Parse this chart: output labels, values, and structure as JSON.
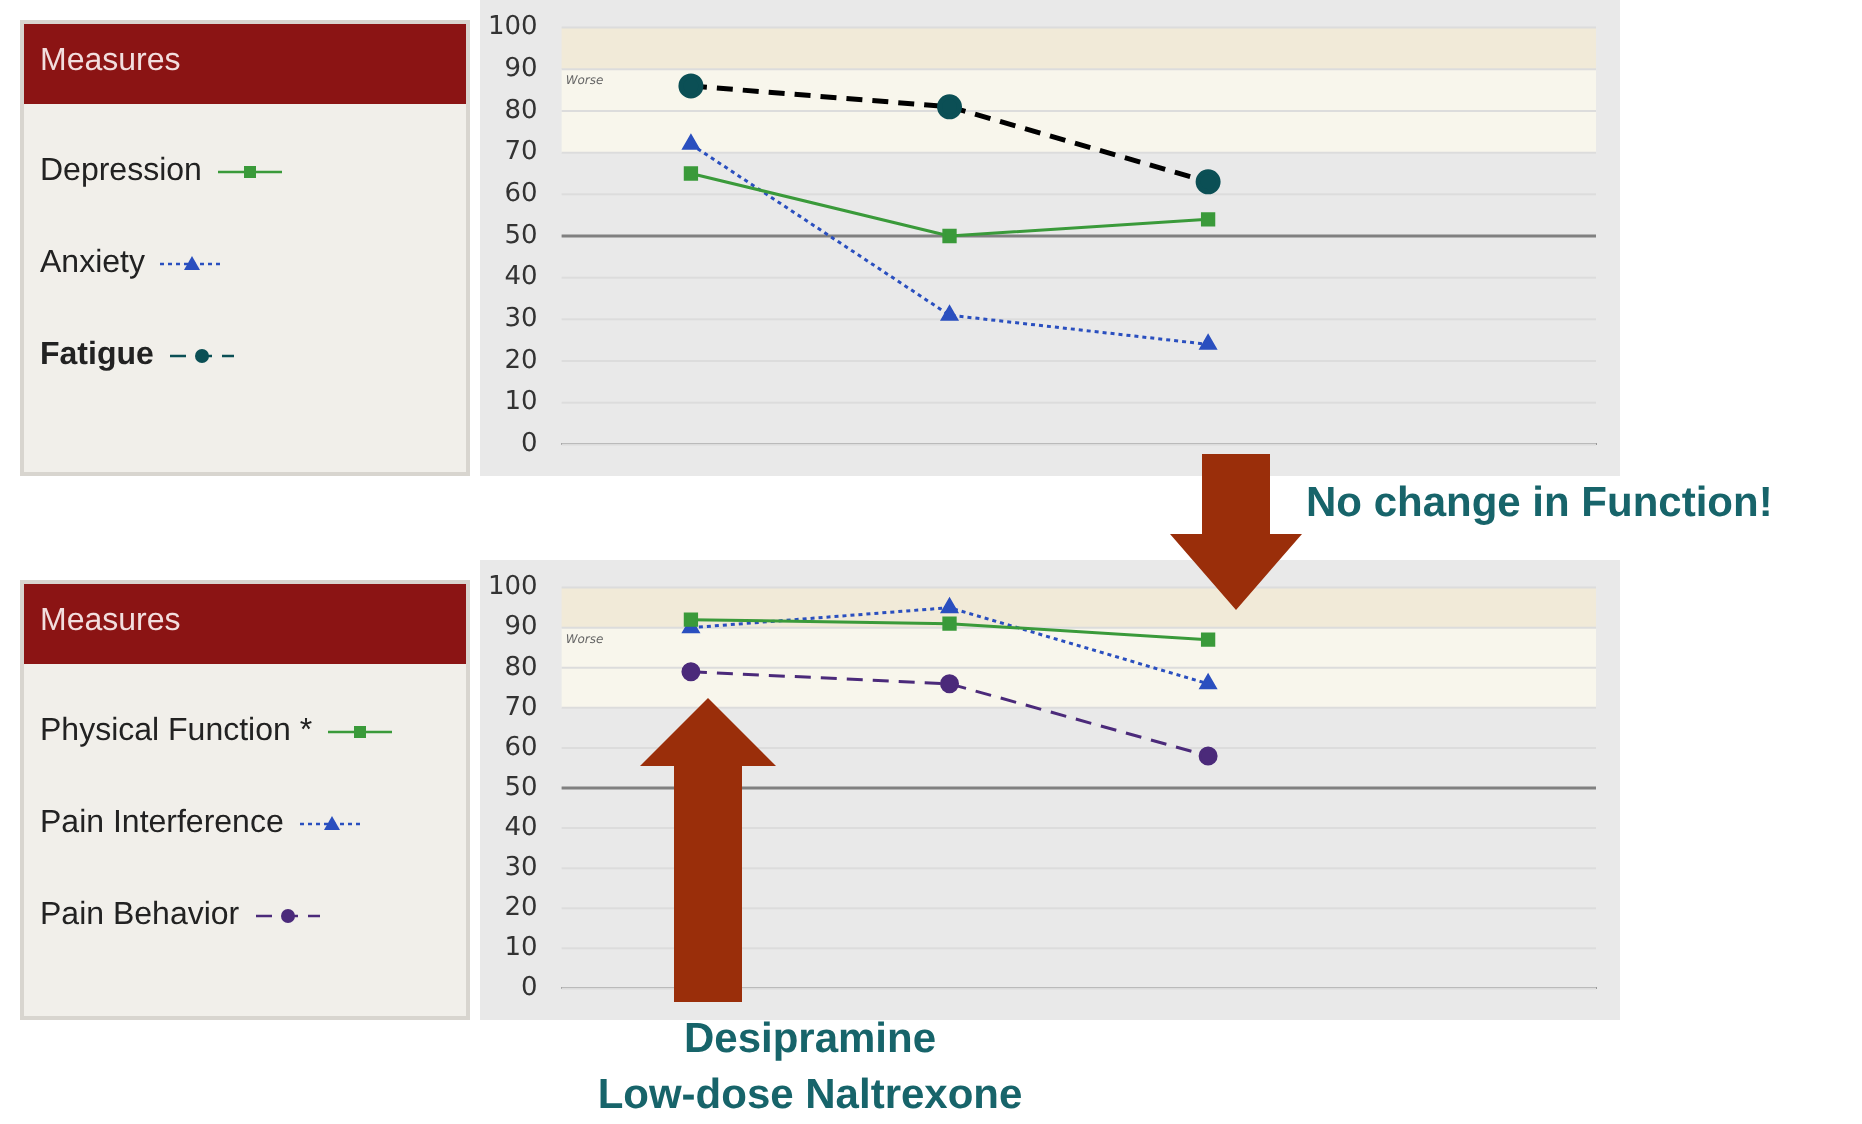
{
  "chart_data": [
    {
      "type": "line",
      "legend_title": "Measures",
      "legend": "left",
      "categories": [
        null,
        null,
        null,
        null
      ],
      "ylim": [
        0,
        100
      ],
      "yticks": [
        0,
        10,
        20,
        30,
        40,
        50,
        60,
        70,
        80,
        90,
        100
      ],
      "grid": "y",
      "tick_labels": "y",
      "bands": [
        {
          "axis": "y",
          "from": 90,
          "to": 100,
          "color": "#f1ead8"
        },
        {
          "axis": "y",
          "from": 70,
          "to": 90,
          "color": "#f8f6ec",
          "label": "Worse"
        }
      ],
      "ref_lines": [
        {
          "axis": "y",
          "value": 50,
          "color": "#808080"
        }
      ],
      "series": [
        {
          "name": "Depression",
          "color": "#3a9a3a",
          "marker": "square",
          "line_style": "solid",
          "values": [
            65,
            50,
            54,
            null
          ]
        },
        {
          "name": "Anxiety",
          "color": "#2a4fbf",
          "marker": "triangle",
          "line_style": "dotted",
          "values": [
            72,
            31,
            24,
            null
          ]
        },
        {
          "name": "Fatigue",
          "color": "#0b4f55",
          "marker": "circle",
          "line_style": "dashed",
          "values": [
            86,
            81,
            63,
            null
          ]
        }
      ]
    },
    {
      "type": "line",
      "legend_title": "Measures",
      "legend": "left",
      "categories": [
        null,
        null,
        null,
        null
      ],
      "ylim": [
        0,
        100
      ],
      "yticks": [
        0,
        10,
        20,
        30,
        40,
        50,
        60,
        70,
        80,
        90,
        100
      ],
      "grid": "y",
      "tick_labels": "y",
      "bands": [
        {
          "axis": "y",
          "from": 90,
          "to": 100,
          "color": "#f1ead8"
        },
        {
          "axis": "y",
          "from": 70,
          "to": 90,
          "color": "#f8f6ec",
          "label": "Worse"
        }
      ],
      "ref_lines": [
        {
          "axis": "y",
          "value": 50,
          "color": "#808080"
        }
      ],
      "annotations": [
        "No change in Function!",
        "Desipramine",
        "Low-dose Naltrexone"
      ],
      "series": [
        {
          "name": "Physical Function *",
          "color": "#3a9a3a",
          "marker": "square",
          "line_style": "solid",
          "values": [
            92,
            91,
            87,
            null
          ]
        },
        {
          "name": "Pain Interference",
          "color": "#2a4fbf",
          "marker": "triangle",
          "line_style": "dotted",
          "values": [
            90,
            95,
            76,
            null
          ]
        },
        {
          "name": "Pain Behavior",
          "color": "#4b2a7a",
          "marker": "circle",
          "line_style": "dashed",
          "values": [
            79,
            76,
            58,
            null
          ]
        }
      ]
    }
  ]
}
